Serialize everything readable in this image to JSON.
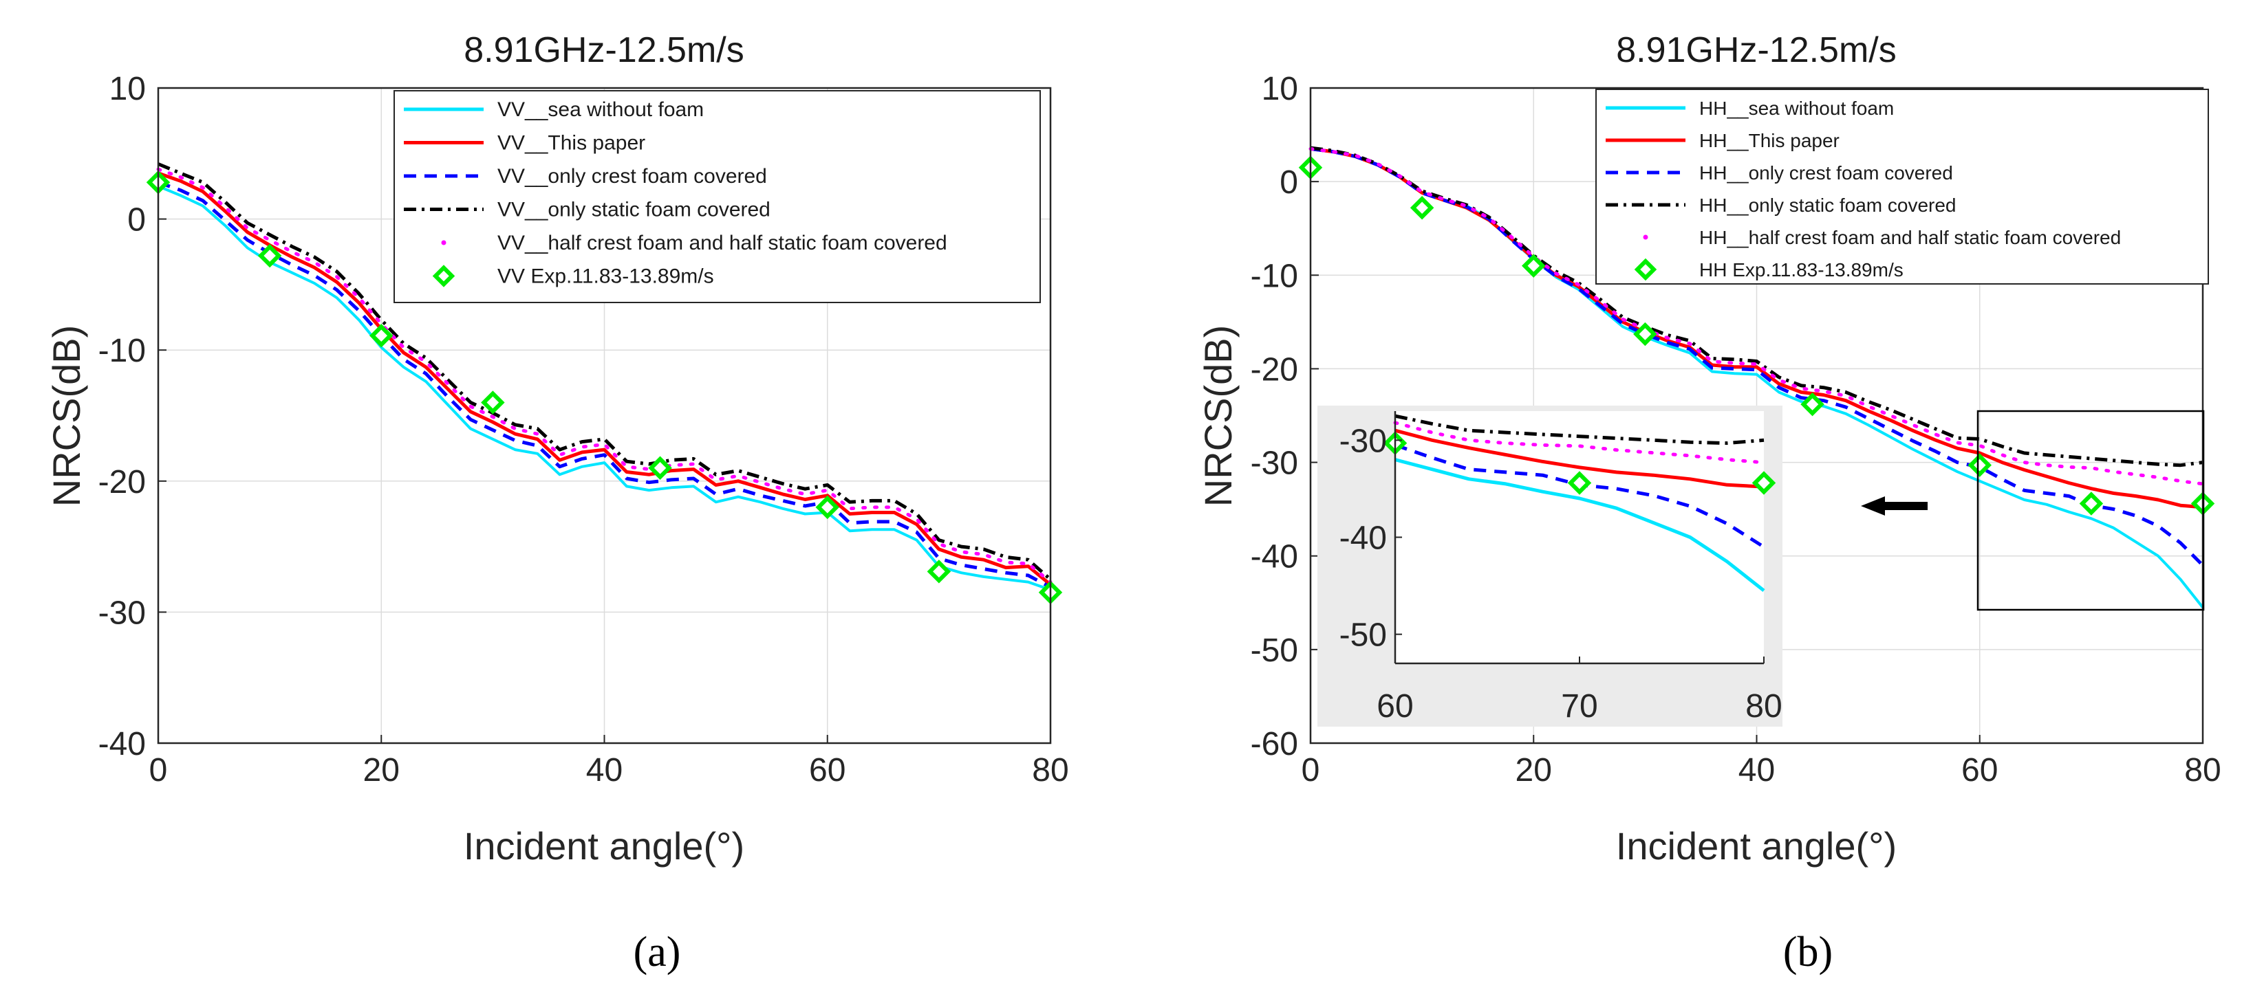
{
  "figure": {
    "panel_labels": [
      "(a)",
      "(b)"
    ]
  },
  "chart_data": [
    {
      "type": "line",
      "title": "8.91GHz-12.5m/s",
      "xlabel": "Incident angle(°)",
      "ylabel": "NRCS(dB)",
      "xlim": [
        0,
        80
      ],
      "ylim": [
        -40,
        10
      ],
      "xticks": [
        0,
        20,
        40,
        60,
        80
      ],
      "yticks": [
        10,
        0,
        -10,
        -20,
        -30,
        -40
      ],
      "grid": true,
      "legend_position": "top-right",
      "x": [
        0,
        2,
        4,
        6,
        8,
        10,
        12,
        14,
        16,
        18,
        20,
        22,
        24,
        26,
        28,
        30,
        32,
        34,
        36,
        38,
        40,
        42,
        44,
        46,
        48,
        50,
        52,
        54,
        56,
        58,
        60,
        62,
        64,
        66,
        68,
        70,
        72,
        74,
        76,
        78,
        80
      ],
      "series": [
        {
          "name": "VV__sea without foam",
          "color": "#00e5ff",
          "style": "solid",
          "values": [
            2.5,
            1.8,
            1.0,
            -0.5,
            -2.2,
            -3.3,
            -4.1,
            -4.9,
            -6.0,
            -7.7,
            -9.8,
            -11.3,
            -12.4,
            -14.2,
            -16.0,
            -16.8,
            -17.6,
            -17.9,
            -19.5,
            -18.9,
            -18.6,
            -20.4,
            -20.7,
            -20.5,
            -20.4,
            -21.6,
            -21.2,
            -21.6,
            -22.1,
            -22.5,
            -22.4,
            -23.8,
            -23.7,
            -23.7,
            -24.5,
            -26.5,
            -27.0,
            -27.3,
            -27.5,
            -27.7,
            -28.3
          ]
        },
        {
          "name": "VV__This paper",
          "color": "#ff0000",
          "style": "solid",
          "values": [
            3.5,
            2.9,
            2.1,
            0.6,
            -1.0,
            -2.0,
            -2.9,
            -3.7,
            -4.8,
            -6.4,
            -8.4,
            -10.2,
            -11.3,
            -13.0,
            -14.7,
            -15.5,
            -16.4,
            -16.8,
            -18.4,
            -17.8,
            -17.6,
            -19.3,
            -19.5,
            -19.2,
            -19.1,
            -20.3,
            -20.0,
            -20.5,
            -21.0,
            -21.4,
            -21.1,
            -22.5,
            -22.4,
            -22.4,
            -23.3,
            -25.2,
            -25.8,
            -26.0,
            -26.6,
            -26.5,
            -27.9
          ]
        },
        {
          "name": "VV__only crest foam covered",
          "color": "#0000ff",
          "style": "dashed",
          "values": [
            2.8,
            2.2,
            1.4,
            -0.1,
            -1.6,
            -2.6,
            -3.5,
            -4.3,
            -5.4,
            -7.0,
            -8.9,
            -10.7,
            -11.8,
            -13.6,
            -15.3,
            -16.1,
            -16.9,
            -17.3,
            -18.9,
            -18.3,
            -18.0,
            -19.8,
            -20.1,
            -19.9,
            -19.8,
            -21.0,
            -20.6,
            -21.1,
            -21.5,
            -21.9,
            -21.6,
            -23.2,
            -23.1,
            -23.1,
            -23.9,
            -25.9,
            -26.4,
            -26.7,
            -27.0,
            -27.2,
            -28.1
          ]
        },
        {
          "name": "VV__only static foam covered",
          "color": "#000000",
          "style": "dashdot",
          "values": [
            4.2,
            3.5,
            2.8,
            1.3,
            -0.3,
            -1.2,
            -2.1,
            -2.9,
            -4.0,
            -5.7,
            -7.7,
            -9.5,
            -10.6,
            -12.3,
            -14.0,
            -14.8,
            -15.7,
            -16.0,
            -17.6,
            -17.0,
            -16.8,
            -18.5,
            -18.7,
            -18.4,
            -18.3,
            -19.5,
            -19.2,
            -19.7,
            -20.2,
            -20.6,
            -20.3,
            -21.6,
            -21.5,
            -21.5,
            -22.5,
            -24.5,
            -25.0,
            -25.2,
            -25.8,
            -26.0,
            -27.5
          ]
        },
        {
          "name": "VV__half crest foam and half static foam covered",
          "color": "#ff00ff",
          "style": "dotted",
          "values": [
            3.8,
            3.2,
            2.4,
            0.9,
            -0.7,
            -1.6,
            -2.5,
            -3.3,
            -4.4,
            -6.0,
            -8.0,
            -9.8,
            -10.9,
            -12.6,
            -14.3,
            -15.1,
            -16.0,
            -16.4,
            -18.0,
            -17.4,
            -17.2,
            -18.9,
            -19.1,
            -18.8,
            -18.7,
            -19.9,
            -19.6,
            -20.1,
            -20.6,
            -21.0,
            -20.7,
            -22.1,
            -22.0,
            -22.0,
            -22.9,
            -24.8,
            -25.4,
            -25.6,
            -26.2,
            -26.3,
            -27.7
          ]
        }
      ],
      "experiment": {
        "name": "VV Exp.11.83-13.89m/s",
        "color": "#00ee00",
        "x": [
          0,
          10,
          20,
          30,
          45,
          60,
          70,
          80
        ],
        "y": [
          2.8,
          -2.8,
          -8.9,
          -14.0,
          -19.0,
          -22.0,
          -26.9,
          -28.5
        ]
      }
    },
    {
      "type": "line",
      "title": "8.91GHz-12.5m/s",
      "xlabel": "Incident angle(°)",
      "ylabel": "NRCS(dB)",
      "xlim": [
        0,
        80
      ],
      "ylim": [
        -60,
        10
      ],
      "xticks": [
        0,
        20,
        40,
        60,
        80
      ],
      "yticks": [
        10,
        0,
        -10,
        -20,
        -30,
        -40,
        -50,
        -60
      ],
      "grid": true,
      "legend_position": "top-right",
      "x": [
        0,
        2,
        4,
        6,
        8,
        10,
        12,
        14,
        16,
        18,
        20,
        22,
        24,
        26,
        28,
        30,
        32,
        34,
        36,
        38,
        40,
        42,
        44,
        46,
        48,
        50,
        52,
        54,
        56,
        58,
        60,
        62,
        64,
        66,
        68,
        70,
        72,
        74,
        76,
        78,
        80
      ],
      "series": [
        {
          "name": "HH__sea without foam",
          "color": "#00e5ff",
          "style": "solid",
          "values": [
            3.5,
            3.2,
            2.7,
            1.8,
            0.5,
            -1.2,
            -2.0,
            -2.6,
            -4.0,
            -6.2,
            -8.3,
            -10.2,
            -11.5,
            -13.5,
            -15.5,
            -16.6,
            -17.5,
            -18.3,
            -20.3,
            -20.5,
            -20.6,
            -22.5,
            -23.5,
            -24.0,
            -24.8,
            -26.0,
            -27.3,
            -28.6,
            -29.8,
            -31.0,
            -32.0,
            -33.0,
            -34.0,
            -34.5,
            -35.3,
            -36.0,
            -37.0,
            -38.5,
            -40.0,
            -42.5,
            -45.5
          ]
        },
        {
          "name": "HH__This paper",
          "color": "#ff0000",
          "style": "solid",
          "values": [
            3.5,
            3.2,
            2.7,
            1.8,
            0.5,
            -1.2,
            -2.0,
            -2.8,
            -4.1,
            -6.1,
            -8.2,
            -10.0,
            -11.2,
            -13.1,
            -15.0,
            -16.1,
            -17.0,
            -17.7,
            -19.6,
            -19.8,
            -19.8,
            -21.6,
            -22.5,
            -22.8,
            -23.4,
            -24.5,
            -25.5,
            -26.6,
            -27.6,
            -28.5,
            -29.0,
            -30.0,
            -30.8,
            -31.5,
            -32.2,
            -32.8,
            -33.3,
            -33.6,
            -34.0,
            -34.6,
            -34.8
          ]
        },
        {
          "name": "HH__only crest foam covered",
          "color": "#0000ff",
          "style": "dashed",
          "values": [
            3.5,
            3.2,
            2.7,
            1.8,
            0.5,
            -1.2,
            -2.0,
            -2.7,
            -4.0,
            -6.2,
            -8.3,
            -10.1,
            -11.4,
            -13.3,
            -15.2,
            -16.3,
            -17.2,
            -17.9,
            -19.9,
            -20.0,
            -20.1,
            -22.0,
            -23.1,
            -23.4,
            -24.1,
            -25.3,
            -26.5,
            -27.7,
            -28.8,
            -30.0,
            -30.5,
            -31.8,
            -33.0,
            -33.3,
            -33.6,
            -34.6,
            -35.0,
            -35.7,
            -36.8,
            -38.6,
            -41.0
          ]
        },
        {
          "name": "HH__only static foam covered",
          "color": "#000000",
          "style": "dashdot",
          "values": [
            3.6,
            3.3,
            2.8,
            1.9,
            0.6,
            -1.0,
            -1.8,
            -2.5,
            -3.8,
            -5.8,
            -7.9,
            -9.6,
            -10.8,
            -12.6,
            -14.5,
            -15.5,
            -16.4,
            -17.0,
            -18.9,
            -19.0,
            -19.2,
            -20.9,
            -21.8,
            -22.0,
            -22.5,
            -23.5,
            -24.4,
            -25.4,
            -26.4,
            -27.4,
            -27.5,
            -28.3,
            -29.0,
            -29.2,
            -29.4,
            -29.6,
            -29.8,
            -30.0,
            -30.2,
            -30.3,
            -30.0
          ]
        },
        {
          "name": "HH__half crest foam and half static foam covered",
          "color": "#ff00ff",
          "style": "dotted",
          "values": [
            3.5,
            3.2,
            2.8,
            1.9,
            0.6,
            -1.1,
            -1.9,
            -2.6,
            -3.9,
            -5.9,
            -8.0,
            -9.8,
            -11.0,
            -12.8,
            -14.7,
            -15.8,
            -16.7,
            -17.3,
            -19.2,
            -19.4,
            -19.5,
            -21.2,
            -22.1,
            -22.4,
            -22.9,
            -24.0,
            -25.0,
            -26.0,
            -27.0,
            -27.9,
            -28.2,
            -29.2,
            -30.0,
            -30.3,
            -30.5,
            -30.6,
            -31.0,
            -31.3,
            -31.6,
            -32.0,
            -32.3
          ]
        }
      ],
      "experiment": {
        "name": "HH Exp.11.83-13.89m/s",
        "color": "#00ee00",
        "x": [
          0,
          10,
          20,
          30,
          45,
          60,
          70,
          80
        ],
        "y": [
          1.5,
          -2.8,
          -9.0,
          -16.3,
          -23.8,
          -30.3,
          -34.4,
          -34.4
        ]
      },
      "inset": {
        "xlim": [
          60,
          80
        ],
        "ylim": [
          -53,
          -27
        ],
        "xticks": [
          60,
          70,
          80
        ],
        "yticks": [
          -30,
          -40,
          -50
        ]
      }
    }
  ]
}
